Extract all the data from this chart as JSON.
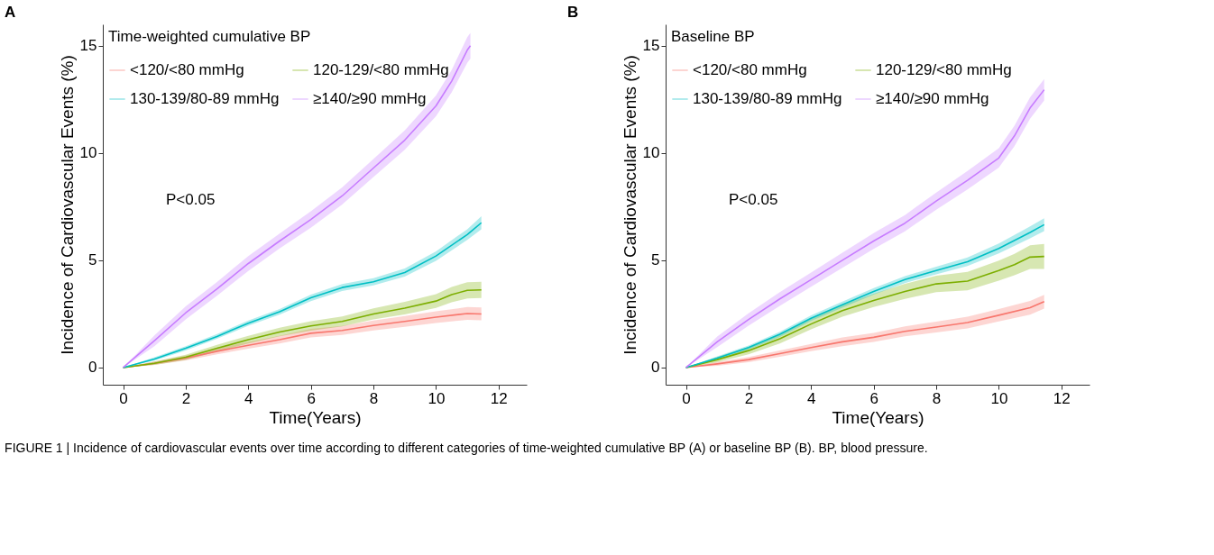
{
  "chart_data": [
    {
      "type": "line",
      "title": "A",
      "xlabel": "Time(Years)",
      "ylabel": "Incidence  of  Cardiovascular  Events (%)",
      "legend_title": "Time-weighted cumulative BP",
      "legend": "top left",
      "grid": false,
      "annotations": [
        "P<0.05"
      ],
      "xlim": [
        -0.65,
        12.9
      ],
      "ylim": [
        -0.8,
        16
      ],
      "xticks": [
        0,
        2,
        4,
        6,
        8,
        10,
        12
      ],
      "yticks": [
        0,
        5,
        10,
        15
      ],
      "series": [
        {
          "name": "<120/<80 mmHg",
          "color": "#f8766d",
          "x": [
            0,
            1,
            2,
            3,
            4,
            5,
            6,
            7,
            8,
            9,
            10,
            11,
            11.45
          ],
          "values": [
            0,
            0.2,
            0.44,
            0.76,
            1.04,
            1.3,
            1.6,
            1.73,
            1.96,
            2.15,
            2.35,
            2.52,
            2.5
          ],
          "lower": [
            0,
            0.12,
            0.33,
            0.62,
            0.88,
            1.12,
            1.4,
            1.52,
            1.73,
            1.9,
            2.08,
            2.22,
            2.2
          ],
          "upper": [
            0,
            0.28,
            0.55,
            0.9,
            1.2,
            1.48,
            1.8,
            1.94,
            2.19,
            2.4,
            2.62,
            2.82,
            2.8
          ]
        },
        {
          "name": "120-129/<80 mmHg",
          "color": "#7cae00",
          "x": [
            0,
            1,
            2,
            3,
            4,
            5,
            6,
            7,
            8,
            9,
            10,
            10.5,
            11,
            11.45
          ],
          "values": [
            0,
            0.2,
            0.48,
            0.9,
            1.3,
            1.66,
            1.94,
            2.15,
            2.5,
            2.77,
            3.1,
            3.4,
            3.6,
            3.62
          ],
          "lower": [
            0,
            0.12,
            0.36,
            0.74,
            1.12,
            1.46,
            1.72,
            1.92,
            2.24,
            2.48,
            2.78,
            3.04,
            3.22,
            3.24
          ],
          "upper": [
            0,
            0.28,
            0.6,
            1.06,
            1.48,
            1.86,
            2.16,
            2.38,
            2.76,
            3.06,
            3.42,
            3.76,
            3.98,
            4.0
          ]
        },
        {
          "name": "130-139/80-89 mmHg",
          "color": "#00bfc4",
          "x": [
            0,
            1,
            2,
            3,
            4,
            5,
            6,
            7,
            8,
            9,
            10,
            11,
            11.45
          ],
          "values": [
            0,
            0.4,
            0.9,
            1.45,
            2.07,
            2.6,
            3.25,
            3.73,
            4.0,
            4.43,
            5.2,
            6.2,
            6.75
          ],
          "lower": [
            0,
            0.32,
            0.8,
            1.34,
            1.95,
            2.47,
            3.1,
            3.57,
            3.83,
            4.24,
            4.98,
            5.95,
            6.45
          ],
          "upper": [
            0,
            0.48,
            1.0,
            1.56,
            2.19,
            2.73,
            3.4,
            3.89,
            4.17,
            4.62,
            5.42,
            6.45,
            7.05
          ]
        },
        {
          "name": "≥140/≥90 mmHg",
          "color": "#c77cff",
          "x": [
            0,
            1,
            2,
            3,
            4,
            5,
            6,
            7,
            8,
            9,
            10,
            10.5,
            11,
            11.1
          ],
          "values": [
            0,
            1.25,
            2.55,
            3.67,
            4.85,
            5.9,
            6.9,
            8.0,
            9.3,
            10.6,
            12.2,
            13.35,
            14.8,
            15.0
          ],
          "lower": [
            0,
            1.0,
            2.25,
            3.35,
            4.5,
            5.55,
            6.52,
            7.6,
            8.88,
            10.15,
            11.72,
            12.83,
            14.2,
            14.4
          ],
          "upper": [
            0,
            1.5,
            2.85,
            3.99,
            5.2,
            6.25,
            7.28,
            8.4,
            9.72,
            11.05,
            12.68,
            13.87,
            15.4,
            15.6
          ]
        }
      ]
    },
    {
      "type": "line",
      "title": "B",
      "xlabel": "Time(Years)",
      "ylabel": "Incidence  of  Cardiovascular  Events (%)",
      "legend_title": "Baseline BP",
      "legend": "top left",
      "grid": false,
      "annotations": [
        "P<0.05",
        "FIGURE 1 | Incidence of cardiovascular events over time according to different categories of time-weighted cumulative BP (A) or baseline BP (B). BP, blood pressure."
      ],
      "xlim": [
        -0.65,
        12.9
      ],
      "ylim": [
        -0.8,
        16
      ],
      "xticks": [
        0,
        2,
        4,
        6,
        8,
        10,
        12
      ],
      "yticks": [
        0,
        5,
        10,
        15
      ],
      "series": [
        {
          "name": "<120/<80 mmHg",
          "color": "#f8766d",
          "x": [
            0,
            1,
            2,
            3,
            4,
            5,
            6,
            7,
            8,
            9,
            10,
            11,
            11.45
          ],
          "values": [
            0,
            0.17,
            0.37,
            0.65,
            0.93,
            1.2,
            1.41,
            1.69,
            1.89,
            2.1,
            2.44,
            2.79,
            3.07
          ],
          "lower": [
            0,
            0.08,
            0.25,
            0.5,
            0.76,
            1.0,
            1.2,
            1.46,
            1.64,
            1.83,
            2.15,
            2.47,
            2.75
          ],
          "upper": [
            0,
            0.26,
            0.49,
            0.8,
            1.1,
            1.4,
            1.62,
            1.92,
            2.14,
            2.37,
            2.73,
            3.11,
            3.39
          ]
        },
        {
          "name": "120-129/<80 mmHg",
          "color": "#7cae00",
          "x": [
            0,
            1,
            2,
            3,
            4,
            5,
            6,
            7,
            8,
            9,
            10,
            10.5,
            11,
            11.45
          ],
          "values": [
            0,
            0.37,
            0.79,
            1.34,
            2.03,
            2.65,
            3.13,
            3.55,
            3.9,
            4.03,
            4.52,
            4.8,
            5.15,
            5.18
          ],
          "lower": [
            0,
            0.25,
            0.62,
            1.12,
            1.78,
            2.37,
            2.82,
            3.2,
            3.52,
            3.6,
            4.05,
            4.3,
            4.6,
            4.6
          ],
          "upper": [
            0,
            0.49,
            0.96,
            1.56,
            2.28,
            2.93,
            3.44,
            3.9,
            4.28,
            4.46,
            4.99,
            5.3,
            5.7,
            5.76
          ]
        },
        {
          "name": "130-139/80-89 mmHg",
          "color": "#00bfc4",
          "x": [
            0,
            1,
            2,
            3,
            4,
            5,
            6,
            7,
            8,
            9,
            10,
            11,
            11.45
          ],
          "values": [
            0,
            0.44,
            0.93,
            1.55,
            2.3,
            2.93,
            3.55,
            4.1,
            4.52,
            4.93,
            5.55,
            6.3,
            6.66
          ],
          "lower": [
            0,
            0.36,
            0.83,
            1.43,
            2.17,
            2.79,
            3.4,
            3.94,
            4.34,
            4.73,
            5.32,
            6.02,
            6.36
          ],
          "upper": [
            0,
            0.52,
            1.03,
            1.67,
            2.43,
            3.07,
            3.7,
            4.26,
            4.7,
            5.13,
            5.78,
            6.58,
            6.96
          ]
        },
        {
          "name": "≥140/≥90 mmHg",
          "color": "#c77cff",
          "x": [
            0,
            1,
            2,
            3,
            4,
            5,
            6,
            7,
            8,
            9,
            10,
            10.5,
            11,
            11.45
          ],
          "values": [
            0,
            1.2,
            2.24,
            3.2,
            4.1,
            5.0,
            5.9,
            6.73,
            7.76,
            8.73,
            9.77,
            10.8,
            12.1,
            12.95
          ],
          "lower": [
            0,
            0.95,
            1.95,
            2.88,
            3.77,
            4.65,
            5.53,
            6.35,
            7.36,
            8.3,
            9.32,
            10.32,
            11.6,
            12.45
          ],
          "upper": [
            0,
            1.45,
            2.53,
            3.52,
            4.43,
            5.35,
            6.27,
            7.11,
            8.16,
            9.16,
            10.22,
            11.28,
            12.6,
            13.45
          ]
        }
      ]
    }
  ]
}
